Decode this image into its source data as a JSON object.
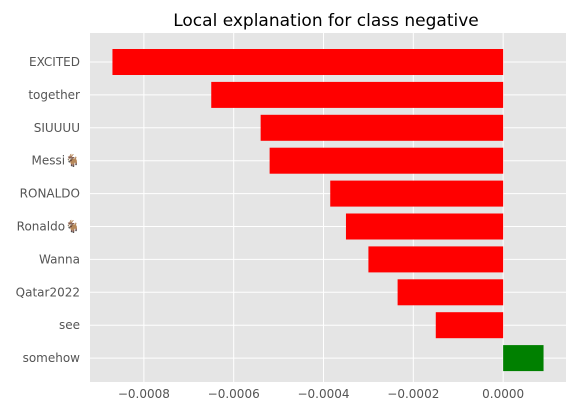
{
  "chart_data": {
    "type": "bar",
    "orientation": "horizontal",
    "title": "Local explanation for class negative",
    "xlabel": "",
    "ylabel": "",
    "categories": [
      "EXCITED",
      "together",
      "SIUUUU",
      "Messi🐐",
      "RONALDO",
      "Ronaldo🐐",
      "Wanna",
      "Qatar2022",
      "see",
      "somehow"
    ],
    "values": [
      -0.00087,
      -0.00065,
      -0.00054,
      -0.00052,
      -0.000385,
      -0.00035,
      -0.0003,
      -0.000235,
      -0.00015,
      9e-05
    ],
    "xlim": [
      -0.00092,
      0.00014
    ],
    "xticks": [
      -0.0008,
      -0.0006,
      -0.0004,
      -0.0002,
      0.0
    ],
    "xtick_labels": [
      "−0.0008",
      "−0.0006",
      "−0.0004",
      "−0.0002",
      "0.0000"
    ],
    "grid": true,
    "colors": {
      "negative": "#ff0000",
      "positive": "#008000",
      "background": "#e5e5e5",
      "grid": "#ffffff"
    }
  }
}
